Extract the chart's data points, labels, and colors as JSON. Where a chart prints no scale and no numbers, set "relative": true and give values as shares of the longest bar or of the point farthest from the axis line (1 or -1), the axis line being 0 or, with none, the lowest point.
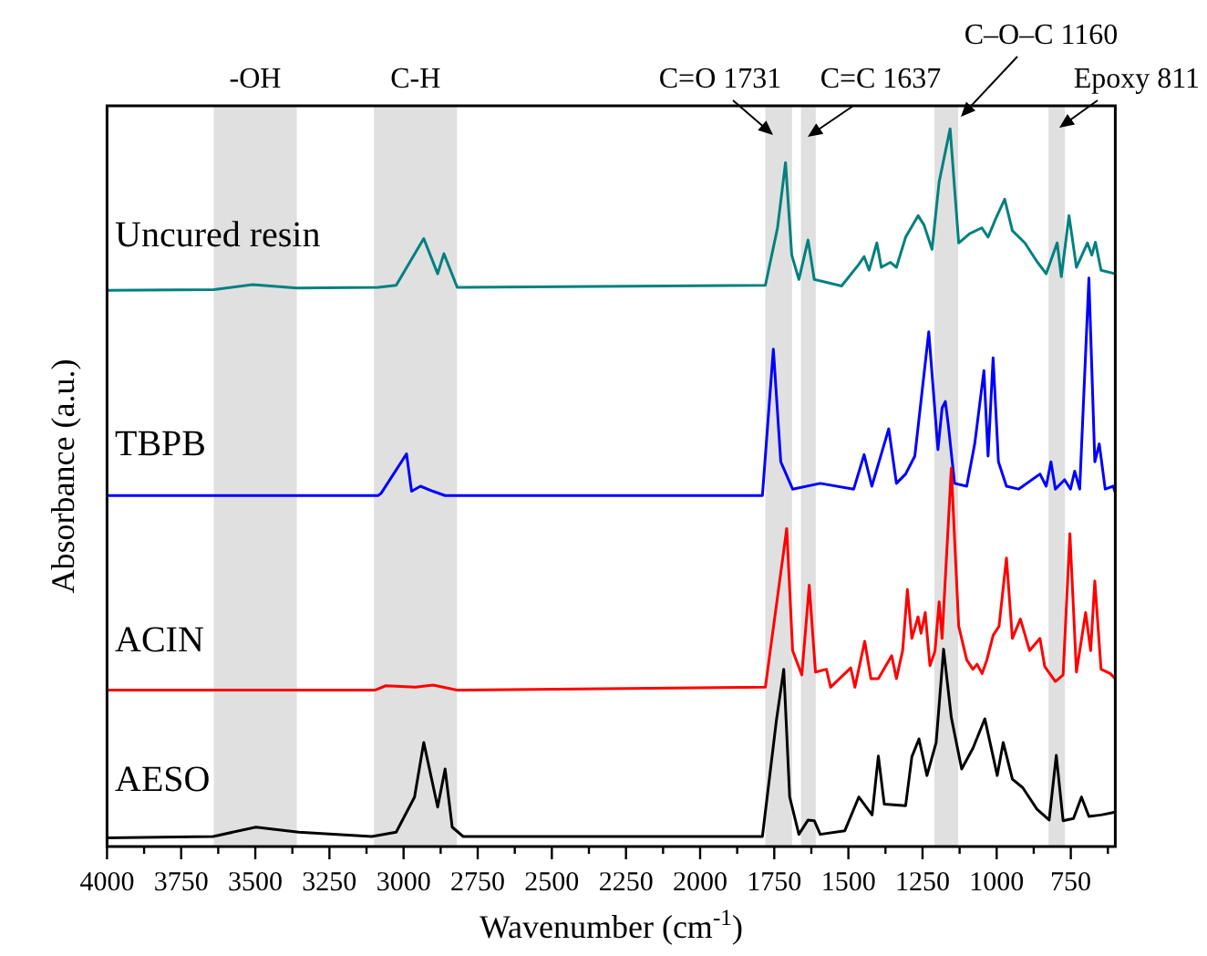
{
  "chart_data": {
    "type": "line",
    "relative": true,
    "xlabel": "Wavenumber (cm$^{-1}$)",
    "ylabel": "Absorbance (a.u.)",
    "xlim": [
      4000,
      600
    ],
    "xticks": [
      4000,
      {
        "value": 3875,
        "label": null
      },
      3750,
      {
        "value": 3625,
        "label": null
      },
      3500,
      {
        "value": 3375,
        "label": null
      },
      3250,
      {
        "value": 3125,
        "label": null
      },
      3000,
      {
        "value": 2875,
        "label": null
      },
      2750,
      {
        "value": 2625,
        "label": null
      },
      2500,
      {
        "value": 2375,
        "label": null
      },
      2250,
      {
        "value": 2125,
        "label": null
      },
      2000,
      {
        "value": 1875,
        "label": null
      },
      1750,
      {
        "value": 1625,
        "label": null
      },
      1500,
      {
        "value": 1375,
        "label": null
      },
      1250,
      {
        "value": 1125,
        "label": null
      },
      1000,
      {
        "value": 875,
        "label": null
      },
      750,
      {
        "value": 625,
        "label": null
      }
    ],
    "grid": false,
    "tick_labels": "x",
    "bands": [
      {
        "axis": "x",
        "from": 3640,
        "to": 3360,
        "color": "#e0e0e0"
      },
      {
        "axis": "x",
        "from": 3100,
        "to": 2820,
        "color": "#e0e0e0"
      },
      {
        "axis": "x",
        "from": 1780,
        "to": 1690,
        "color": "#e0e0e0"
      },
      {
        "axis": "x",
        "from": 1660,
        "to": 1610,
        "color": "#e0e0e0"
      },
      {
        "axis": "x",
        "from": 1210,
        "to": 1130,
        "color": "#e0e0e0"
      },
      {
        "axis": "x",
        "from": 825,
        "to": 770,
        "color": "#e0e0e0"
      }
    ],
    "annotations": [
      "-OH",
      "C-H",
      "C=O 1731",
      "C=C 1637",
      "C–O–C 1160",
      "Epoxy 811"
    ],
    "series": [
      {
        "name": "Uncured resin",
        "color": "#008080",
        "x": [
          4000,
          3640,
          3509,
          3360,
          3086,
          3025,
          2932,
          2885,
          2864,
          2819,
          1780,
          1739,
          1712,
          1691,
          1667,
          1636,
          1615,
          1574,
          1523,
          1465,
          1447,
          1430,
          1404,
          1389,
          1358,
          1338,
          1307,
          1265,
          1245,
          1218,
          1194,
          1157,
          1128,
          1091,
          1050,
          1029,
          1003,
          973,
          947,
          905,
          864,
          833,
          796,
          782,
          756,
          731,
          694,
          679,
          667,
          648,
          600
        ],
        "values": [
          0.775,
          0.776,
          0.783,
          0.778,
          0.779,
          0.782,
          0.847,
          0.798,
          0.826,
          0.779,
          0.782,
          0.862,
          0.953,
          0.824,
          0.79,
          0.845,
          0.79,
          0.786,
          0.781,
          0.811,
          0.822,
          0.803,
          0.841,
          0.807,
          0.814,
          0.807,
          0.849,
          0.879,
          0.866,
          0.832,
          0.926,
          1.0,
          0.841,
          0.854,
          0.862,
          0.849,
          0.875,
          0.902,
          0.858,
          0.841,
          0.815,
          0.798,
          0.841,
          0.794,
          0.879,
          0.807,
          0.841,
          0.824,
          0.842,
          0.803,
          0.798
        ]
      },
      {
        "name": "TBPB",
        "color": "#0000ff",
        "x": [
          4000,
          3086,
          3076,
          2990,
          2973,
          2943,
          2901,
          2860,
          1790,
          1753,
          1728,
          1688,
          1595,
          1482,
          1447,
          1421,
          1364,
          1338,
          1307,
          1276,
          1229,
          1198,
          1184,
          1173,
          1163,
          1142,
          1101,
          1074,
          1043,
          1029,
          1012,
          994,
          967,
          926,
          854,
          833,
          817,
          802,
          771,
          751,
          737,
          720,
          689,
          669,
          654,
          634,
          607,
          600
        ],
        "values": [
          0.489,
          0.489,
          0.492,
          0.547,
          0.495,
          0.502,
          0.495,
          0.489,
          0.489,
          0.693,
          0.536,
          0.498,
          0.506,
          0.498,
          0.546,
          0.502,
          0.582,
          0.506,
          0.519,
          0.544,
          0.717,
          0.553,
          0.611,
          0.62,
          0.587,
          0.506,
          0.502,
          0.561,
          0.663,
          0.544,
          0.681,
          0.536,
          0.502,
          0.498,
          0.519,
          0.502,
          0.536,
          0.498,
          0.511,
          0.498,
          0.523,
          0.498,
          0.792,
          0.536,
          0.561,
          0.498,
          0.502,
          0.493
        ]
      },
      {
        "name": "ACIN",
        "color": "#ff0000",
        "x": [
          4000,
          3095,
          3060,
          2960,
          2900,
          2820,
          1780,
          1708,
          1688,
          1657,
          1632,
          1611,
          1574,
          1560,
          1492,
          1478,
          1445,
          1424,
          1399,
          1354,
          1338,
          1317,
          1301,
          1286,
          1265,
          1255,
          1241,
          1225,
          1208,
          1194,
          1184,
          1153,
          1128,
          1101,
          1080,
          1066,
          1049,
          1033,
          1012,
          992,
          967,
          947,
          920,
          889,
          854,
          838,
          802,
          776,
          753,
          731,
          700,
          683,
          669,
          648,
          617,
          600
        ],
        "values": [
          0.218,
          0.218,
          0.224,
          0.222,
          0.225,
          0.218,
          0.222,
          0.443,
          0.273,
          0.239,
          0.364,
          0.243,
          0.247,
          0.222,
          0.249,
          0.222,
          0.286,
          0.234,
          0.234,
          0.266,
          0.234,
          0.273,
          0.358,
          0.29,
          0.32,
          0.297,
          0.326,
          0.252,
          0.272,
          0.341,
          0.29,
          0.527,
          0.307,
          0.26,
          0.247,
          0.254,
          0.241,
          0.26,
          0.294,
          0.307,
          0.402,
          0.29,
          0.317,
          0.273,
          0.29,
          0.251,
          0.23,
          0.239,
          0.436,
          0.243,
          0.326,
          0.273,
          0.37,
          0.247,
          0.241,
          0.234
        ]
      },
      {
        "name": "AESO",
        "color": "#000000",
        "x": [
          4000,
          3642,
          3498,
          3354,
          3107,
          3025,
          2963,
          2932,
          2885,
          2860,
          2836,
          2799,
          1790,
          1743,
          1718,
          1698,
          1667,
          1636,
          1615,
          1595,
          1512,
          1465,
          1420,
          1399,
          1379,
          1307,
          1286,
          1262,
          1235,
          1204,
          1179,
          1153,
          1118,
          1080,
          1040,
          998,
          978,
          947,
          912,
          864,
          823,
          799,
          776,
          741,
          714,
          689,
          648,
          600
        ],
        "values": [
          0.012,
          0.014,
          0.027,
          0.02,
          0.014,
          0.02,
          0.069,
          0.145,
          0.055,
          0.108,
          0.027,
          0.014,
          0.014,
          0.175,
          0.247,
          0.069,
          0.017,
          0.037,
          0.036,
          0.017,
          0.022,
          0.069,
          0.044,
          0.126,
          0.059,
          0.057,
          0.125,
          0.15,
          0.099,
          0.145,
          0.275,
          0.18,
          0.108,
          0.137,
          0.178,
          0.099,
          0.145,
          0.094,
          0.082,
          0.052,
          0.037,
          0.127,
          0.036,
          0.039,
          0.069,
          0.042,
          0.044,
          0.048
        ]
      }
    ]
  }
}
